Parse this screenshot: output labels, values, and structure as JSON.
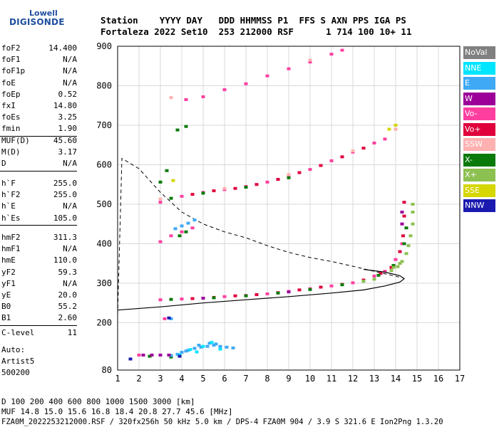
{
  "logo": {
    "line1": "Lowell",
    "line2": "DIGISONDE"
  },
  "header": {
    "labels": "Station    YYYY DAY   DDD HHMMSS P1  FFS S AXN PPS IGA PS",
    "values": "Fortaleza 2022 Set10  253 212000 RSF      1 714 100 10+ 11"
  },
  "params": {
    "group1": [
      {
        "name": "foF2",
        "value": "14.400"
      },
      {
        "name": "foF1",
        "value": "N/A"
      },
      {
        "name": "foF1p",
        "value": "N/A"
      },
      {
        "name": "foE",
        "value": "N/A"
      },
      {
        "name": "foEp",
        "value": "0.52"
      },
      {
        "name": "fxI",
        "value": "14.80"
      },
      {
        "name": "foEs",
        "value": "3.25"
      },
      {
        "name": "fmin",
        "value": "1.90"
      }
    ],
    "group2": [
      {
        "name": "MUF(D)",
        "value": "45.60"
      },
      {
        "name": "M(D)",
        "value": "3.17"
      },
      {
        "name": "D",
        "value": "N/A"
      }
    ],
    "group3": [
      {
        "name": "h`F",
        "value": "255.0"
      },
      {
        "name": "h`F2",
        "value": "255.0"
      },
      {
        "name": "h`E",
        "value": "N/A"
      },
      {
        "name": "h`Es",
        "value": "105.0"
      }
    ],
    "group4": [
      {
        "name": "hmF2",
        "value": "311.3"
      },
      {
        "name": "hmF1",
        "value": "N/A"
      },
      {
        "name": "hmE",
        "value": "110.0"
      },
      {
        "name": "yF2",
        "value": "59.3"
      },
      {
        "name": "yF1",
        "value": "N/A"
      },
      {
        "name": "yE",
        "value": "20.0"
      },
      {
        "name": "B0",
        "value": "55.2"
      },
      {
        "name": "B1",
        "value": "2.60"
      }
    ],
    "group5": [
      {
        "name": "C-level",
        "value": "11"
      }
    ]
  },
  "autoscale": {
    "line1": "Auto:",
    "line2": "Artist5",
    "line3": "500200"
  },
  "legend": [
    {
      "label": "NoVal",
      "color": "#808080"
    },
    {
      "label": "NNE",
      "color": "#00e5ff"
    },
    {
      "label": "E",
      "color": "#3fa9f5"
    },
    {
      "label": "W",
      "color": "#9c0099"
    },
    {
      "label": "Vo-",
      "color": "#ff3fa0"
    },
    {
      "label": "Vo+",
      "color": "#e0003c"
    },
    {
      "label": "SSW",
      "color": "#ffb0b0"
    },
    {
      "label": "X-",
      "color": "#0a7a0a"
    },
    {
      "label": "X+",
      "color": "#8cc050"
    },
    {
      "label": "SSE",
      "color": "#d6d600"
    },
    {
      "label": "NNW",
      "color": "#1a1ab0"
    }
  ],
  "footer": {
    "line1": "D     100  200  400  600  800 1000 1500 3000 [km]",
    "line2": "MUF  14.8 15.0 15.6 16.8 18.4 20.8 27.7 45.6 [MHz]",
    "line3": "FZA0M_2022253212000.RSF / 320fx256h 50 kHz 5.0 km / DPS-4 FZA0M 904 / 3.9 S 321.6 E   Ion2Png 1.3.20"
  },
  "chart_data": {
    "type": "scatter",
    "xlim": [
      1,
      17
    ],
    "ylim": [
      80,
      900
    ],
    "x_ticks": [
      "1",
      "2",
      "3",
      "4",
      "5",
      "6",
      "7",
      "8",
      "9",
      "10",
      "11",
      "12",
      "13",
      "14",
      "15",
      "16",
      "17"
    ],
    "y_ticks": [
      "80",
      "200",
      "300",
      "400",
      "500",
      "600",
      "700",
      "800",
      "900"
    ],
    "grid": true,
    "series": [
      {
        "name": "Vo-",
        "color": "#ff3fa0",
        "points": [
          [
            3.0,
            258
          ],
          [
            4.0,
            260
          ],
          [
            5.0,
            262
          ],
          [
            6.0,
            266
          ],
          [
            7.0,
            269
          ],
          [
            8.0,
            273
          ],
          [
            9.0,
            279
          ],
          [
            10.0,
            286
          ],
          [
            11.0,
            293
          ],
          [
            12.0,
            301
          ],
          [
            13.0,
            318
          ],
          [
            13.5,
            330
          ],
          [
            14.0,
            360
          ],
          [
            14.3,
            400
          ],
          [
            2.0,
            118
          ],
          [
            3.2,
            210
          ],
          [
            3.0,
            505
          ],
          [
            4.0,
            520
          ],
          [
            5.0,
            530
          ],
          [
            6.0,
            537
          ],
          [
            7.0,
            545
          ],
          [
            8.0,
            556
          ],
          [
            9.0,
            570
          ],
          [
            10.0,
            588
          ],
          [
            11.0,
            610
          ],
          [
            12.0,
            632
          ],
          [
            13.0,
            655
          ],
          [
            13.5,
            665
          ],
          [
            3.0,
            405
          ],
          [
            3.5,
            420
          ],
          [
            4.0,
            430
          ],
          [
            4.5,
            440
          ],
          [
            4.2,
            765
          ],
          [
            5.0,
            772
          ],
          [
            6.0,
            790
          ],
          [
            7.0,
            805
          ],
          [
            8.0,
            825
          ],
          [
            9.0,
            843
          ],
          [
            10.0,
            860
          ],
          [
            11.0,
            880
          ],
          [
            11.5,
            890
          ]
        ]
      },
      {
        "name": "Vo+",
        "color": "#e0003c",
        "points": [
          [
            4.5,
            261
          ],
          [
            5.5,
            264
          ],
          [
            6.5,
            268
          ],
          [
            7.5,
            271
          ],
          [
            8.5,
            276
          ],
          [
            9.5,
            283
          ],
          [
            10.5,
            290
          ],
          [
            11.5,
            297
          ],
          [
            12.5,
            308
          ],
          [
            13.3,
            325
          ],
          [
            13.8,
            340
          ],
          [
            14.2,
            380
          ],
          [
            14.35,
            420
          ],
          [
            14.4,
            470
          ],
          [
            14.4,
            505
          ],
          [
            4.5,
            525
          ],
          [
            5.5,
            534
          ],
          [
            6.5,
            540
          ],
          [
            7.5,
            550
          ],
          [
            8.5,
            563
          ],
          [
            9.5,
            580
          ],
          [
            10.5,
            598
          ],
          [
            11.5,
            620
          ],
          [
            12.5,
            642
          ]
        ]
      },
      {
        "name": "X-",
        "color": "#0a7a0a",
        "points": [
          [
            3.5,
            259
          ],
          [
            5.5,
            263
          ],
          [
            7.0,
            268
          ],
          [
            8.5,
            275
          ],
          [
            10.0,
            284
          ],
          [
            11.5,
            296
          ],
          [
            12.5,
            305
          ],
          [
            13.2,
            320
          ],
          [
            13.9,
            345
          ],
          [
            14.4,
            400
          ],
          [
            14.5,
            440
          ],
          [
            3.9,
            420
          ],
          [
            4.2,
            430
          ],
          [
            3.5,
            515
          ],
          [
            5.0,
            528
          ],
          [
            7.0,
            543
          ],
          [
            9.0,
            567
          ],
          [
            3.0,
            556
          ],
          [
            3.3,
            585
          ],
          [
            3.8,
            688
          ],
          [
            4.2,
            697
          ],
          [
            2.5,
            115
          ],
          [
            3.5,
            113
          ]
        ]
      },
      {
        "name": "X+",
        "color": "#8cc050",
        "points": [
          [
            13.8,
            332
          ],
          [
            14.1,
            342
          ],
          [
            14.3,
            355
          ],
          [
            14.5,
            375
          ],
          [
            14.6,
            395
          ],
          [
            14.7,
            420
          ],
          [
            14.8,
            450
          ],
          [
            14.8,
            480
          ],
          [
            14.8,
            500
          ],
          [
            13.0,
            310
          ],
          [
            12.5,
            305
          ],
          [
            14.2,
            350
          ],
          [
            13.9,
            340
          ]
        ]
      },
      {
        "name": "E",
        "color": "#3fa9f5",
        "points": [
          [
            3.8,
            120
          ],
          [
            4.0,
            125
          ],
          [
            4.3,
            130
          ],
          [
            4.6,
            135
          ],
          [
            4.9,
            138
          ],
          [
            5.2,
            140
          ],
          [
            5.5,
            143
          ],
          [
            5.8,
            140
          ],
          [
            6.1,
            138
          ],
          [
            6.4,
            136
          ],
          [
            3.5,
            117
          ],
          [
            4.2,
            128
          ],
          [
            4.8,
            143
          ],
          [
            5.3,
            148
          ],
          [
            5.6,
            146
          ],
          [
            3.7,
            438
          ],
          [
            4.0,
            445
          ],
          [
            4.3,
            452
          ],
          [
            4.6,
            460
          ],
          [
            3.5,
            210
          ]
        ]
      },
      {
        "name": "NNE",
        "color": "#00e5ff",
        "points": [
          [
            4.4,
            132
          ],
          [
            5.0,
            140
          ],
          [
            5.4,
            150
          ],
          [
            5.8,
            133
          ],
          [
            3.9,
            118
          ],
          [
            4.7,
            126
          ]
        ]
      },
      {
        "name": "W",
        "color": "#9c0099",
        "points": [
          [
            2.6,
            118
          ],
          [
            3.0,
            118
          ],
          [
            2.2,
            118
          ],
          [
            3.4,
            118
          ],
          [
            5.0,
            262
          ],
          [
            9.0,
            278
          ],
          [
            14.3,
            450
          ],
          [
            14.3,
            480
          ]
        ]
      },
      {
        "name": "SSW",
        "color": "#ffb0b0",
        "points": [
          [
            3.0,
            513
          ],
          [
            6.0,
            540
          ],
          [
            9.0,
            575
          ],
          [
            12.0,
            635
          ],
          [
            14.0,
            690
          ],
          [
            3.5,
            770
          ],
          [
            10.0,
            865
          ]
        ]
      },
      {
        "name": "NNW",
        "color": "#1a1ab0",
        "points": [
          [
            1.6,
            108
          ],
          [
            3.9,
            115
          ],
          [
            3.4,
            212
          ]
        ]
      },
      {
        "name": "SSE",
        "color": "#d6d600",
        "points": [
          [
            13.7,
            690
          ],
          [
            14.0,
            700
          ],
          [
            3.6,
            560
          ]
        ]
      }
    ],
    "profile_solid": [
      [
        1.0,
        232
      ],
      [
        3.0,
        240
      ],
      [
        5.0,
        250
      ],
      [
        7.0,
        258
      ],
      [
        9.0,
        266
      ],
      [
        11.0,
        275
      ],
      [
        12.5,
        283
      ],
      [
        13.5,
        293
      ],
      [
        14.2,
        303
      ],
      [
        14.4,
        311.3
      ],
      [
        14.2,
        319
      ],
      [
        13.5,
        328
      ],
      [
        12.5,
        335
      ]
    ],
    "profile_dashed": [
      [
        1.0,
        220
      ],
      [
        1.2,
        616
      ],
      [
        2.0,
        590
      ],
      [
        3.0,
        530
      ],
      [
        4.0,
        480
      ],
      [
        5.0,
        450
      ],
      [
        6.0,
        430
      ],
      [
        7.0,
        415
      ],
      [
        8.0,
        395
      ],
      [
        9.0,
        378
      ],
      [
        10.0,
        365
      ],
      [
        11.0,
        355
      ],
      [
        12.0,
        343
      ],
      [
        13.0,
        330
      ],
      [
        13.8,
        320
      ],
      [
        14.2,
        315
      ]
    ]
  }
}
